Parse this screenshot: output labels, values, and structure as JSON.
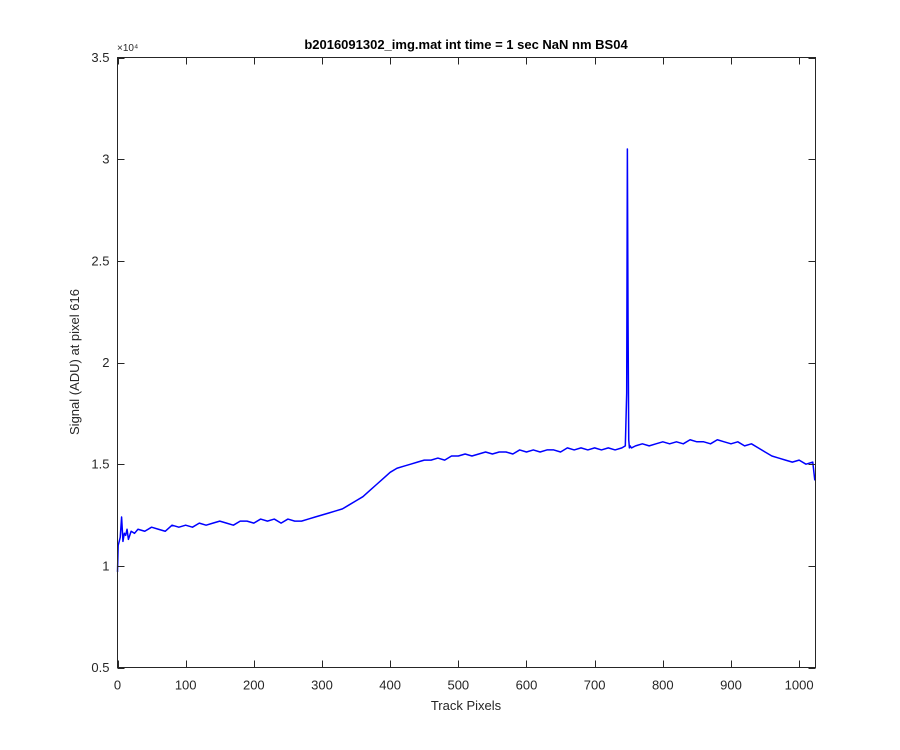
{
  "chart_data": {
    "type": "line",
    "title": "b2016091302_img.mat int time = 1 sec  NaN nm BS04",
    "xlabel": "Track Pixels",
    "ylabel": "Signal (ADU) at pixel 616",
    "xlim": [
      0,
      1024
    ],
    "ylim": [
      5000,
      35000
    ],
    "xticks": [
      0,
      100,
      200,
      300,
      400,
      500,
      600,
      700,
      800,
      900,
      1000
    ],
    "xtick_labels": [
      "0",
      "100",
      "200",
      "300",
      "400",
      "500",
      "600",
      "700",
      "800",
      "900",
      "1000"
    ],
    "yticks": [
      5000,
      10000,
      15000,
      20000,
      25000,
      30000,
      35000
    ],
    "ytick_labels": [
      "0.5",
      "1",
      "1.5",
      "2",
      "2.5",
      "3",
      "3.5"
    ],
    "y_exponent_label": "×10⁴",
    "grid": false,
    "legend": "none",
    "line_color": "#0000ff",
    "series": [
      {
        "x": [
          0,
          1,
          4,
          6,
          8,
          10,
          12,
          14,
          16,
          20,
          25,
          30,
          40,
          50,
          60,
          70,
          80,
          90,
          100,
          110,
          120,
          130,
          140,
          150,
          160,
          170,
          180,
          190,
          200,
          210,
          220,
          230,
          240,
          250,
          260,
          270,
          280,
          290,
          300,
          310,
          320,
          330,
          340,
          350,
          360,
          370,
          380,
          390,
          400,
          410,
          420,
          430,
          440,
          450,
          460,
          470,
          480,
          490,
          500,
          510,
          520,
          530,
          540,
          550,
          560,
          570,
          580,
          590,
          600,
          610,
          620,
          630,
          640,
          650,
          660,
          670,
          680,
          690,
          700,
          710,
          720,
          730,
          740,
          745,
          747,
          748,
          749,
          750,
          751,
          752,
          754,
          760,
          770,
          780,
          790,
          800,
          810,
          820,
          830,
          840,
          850,
          860,
          870,
          880,
          890,
          900,
          910,
          920,
          930,
          940,
          950,
          960,
          970,
          980,
          990,
          1000,
          1010,
          1020,
          1023
        ],
        "y": [
          9700,
          11000,
          11400,
          12400,
          11200,
          11600,
          11500,
          11800,
          11300,
          11700,
          11600,
          11800,
          11700,
          11900,
          11800,
          11700,
          12000,
          11900,
          12000,
          11900,
          12100,
          12000,
          12100,
          12200,
          12100,
          12000,
          12200,
          12200,
          12100,
          12300,
          12200,
          12300,
          12100,
          12300,
          12200,
          12200,
          12300,
          12400,
          12500,
          12600,
          12700,
          12800,
          13000,
          13200,
          13400,
          13700,
          14000,
          14300,
          14600,
          14800,
          14900,
          15000,
          15100,
          15200,
          15200,
          15300,
          15200,
          15400,
          15400,
          15500,
          15400,
          15500,
          15600,
          15500,
          15600,
          15600,
          15500,
          15700,
          15600,
          15700,
          15600,
          15700,
          15700,
          15600,
          15800,
          15700,
          15800,
          15700,
          15800,
          15700,
          15800,
          15700,
          15800,
          15900,
          18500,
          30500,
          22000,
          16200,
          15800,
          15900,
          15800,
          15900,
          16000,
          15900,
          16000,
          16100,
          16000,
          16100,
          16000,
          16200,
          16100,
          16100,
          16000,
          16200,
          16100,
          16000,
          16100,
          15900,
          16000,
          15800,
          15600,
          15400,
          15300,
          15200,
          15100,
          15200,
          15000,
          15100,
          14200
        ]
      }
    ]
  }
}
